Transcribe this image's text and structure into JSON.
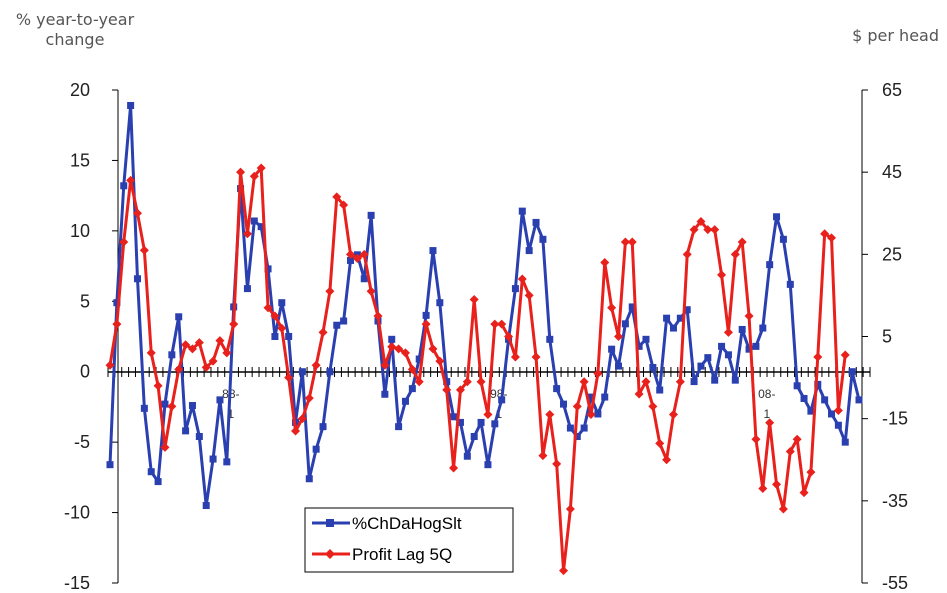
{
  "left_axis_title": "% year-to-year change",
  "right_axis_title": "$ per head",
  "chart_data": {
    "type": "line",
    "y_left": {
      "ticks": [
        20,
        15,
        10,
        5,
        0,
        -5,
        -10,
        -15
      ],
      "ylim": [
        -15,
        20
      ]
    },
    "y_right": {
      "ticks": [
        65,
        45,
        25,
        5,
        -15,
        -35,
        -55
      ],
      "ylim": [
        -55,
        65
      ]
    },
    "x_labels": [
      {
        "line1": "88-",
        "line2": "1",
        "index": 17
      },
      {
        "line1": "98-",
        "line2": "1",
        "index": 56
      },
      {
        "line1": "08-",
        "line2": "1",
        "index": 95
      }
    ],
    "legend": "inside-bottom-center",
    "series": [
      {
        "name": "%ChDaHogSlt",
        "axis": "left",
        "color": "#2a3fb0",
        "marker": "square",
        "values": [
          -6.6,
          4.9,
          13.2,
          18.9,
          6.6,
          -2.6,
          -7.1,
          -7.8,
          -2.3,
          1.2,
          3.9,
          -4.2,
          -2.4,
          -4.6,
          -9.5,
          -6.2,
          -2.0,
          -6.4,
          4.6,
          13.0,
          5.9,
          10.7,
          10.3,
          7.3,
          2.5,
          4.9,
          2.5,
          -3.6,
          0.0,
          -7.6,
          -5.5,
          -3.9,
          0.0,
          3.3,
          3.6,
          7.9,
          8.3,
          6.6,
          11.1,
          3.6,
          -1.6,
          2.3,
          -3.9,
          -2.1,
          -1.2,
          0.9,
          4.0,
          8.6,
          4.9,
          -0.7,
          -3.2,
          -3.6,
          -6.0,
          -4.6,
          -3.6,
          -6.6,
          -3.7,
          -2.0,
          2.3,
          5.9,
          11.4,
          8.6,
          10.6,
          9.4,
          2.3,
          -1.2,
          -2.3,
          -4.0,
          -4.6,
          -4.0,
          -1.8,
          -3.0,
          -1.8,
          1.6,
          0.4,
          3.4,
          4.6,
          1.8,
          2.3,
          0.3,
          -1.3,
          3.8,
          3.1,
          3.8,
          4.4,
          -0.7,
          0.4,
          1.0,
          -0.6,
          1.8,
          1.2,
          -0.6,
          3.0,
          1.6,
          1.8,
          3.1,
          7.6,
          11.0,
          9.4,
          6.2,
          -1.0,
          -1.9,
          -2.8,
          -0.9,
          -2.0,
          -3.0,
          -3.8,
          -5.0,
          0.0,
          -2.0
        ]
      },
      {
        "name": "Profit Lag 5Q",
        "axis": "right",
        "color": "#e8211c",
        "marker": "diamond",
        "values": [
          -2.0,
          8.0,
          28.0,
          43.0,
          35.0,
          26.0,
          1.0,
          -7.0,
          -22.0,
          -12.0,
          -3.0,
          3.0,
          2.0,
          3.5,
          -2.5,
          -1.0,
          4.0,
          1.0,
          8.0,
          45.0,
          30.0,
          44.0,
          46.0,
          12.0,
          10.0,
          7.0,
          -5.0,
          -18.0,
          -15.0,
          -10.0,
          -2.0,
          6.0,
          16.0,
          39.0,
          37.0,
          25.0,
          24.0,
          25.0,
          16.0,
          10.0,
          -2.0,
          2.5,
          2.0,
          1.0,
          -3.0,
          -6.0,
          8.0,
          2.0,
          -1.0,
          -8.0,
          -27.0,
          -8.0,
          -6.0,
          14.0,
          -6.0,
          -14.0,
          8.0,
          8.0,
          5.0,
          0.0,
          19.0,
          15.0,
          0.0,
          -24.0,
          -14.0,
          -26.0,
          -52.0,
          -37.0,
          -12.0,
          -6.0,
          -14.0,
          -4.0,
          23.0,
          12.0,
          5.0,
          28.0,
          28.0,
          -9.0,
          -6.0,
          -12.0,
          -21.0,
          -25.0,
          -14.0,
          -6.0,
          25.0,
          31.0,
          33.0,
          31.0,
          31.0,
          20.0,
          6.0,
          25.0,
          28.0,
          10.0,
          -20.0,
          -32.0,
          -16.0,
          -31.0,
          -37.0,
          -23.0,
          -20.0,
          -33.0,
          -28.0,
          0.0,
          30.0,
          29.0,
          -13.0,
          0.5
        ]
      }
    ]
  }
}
